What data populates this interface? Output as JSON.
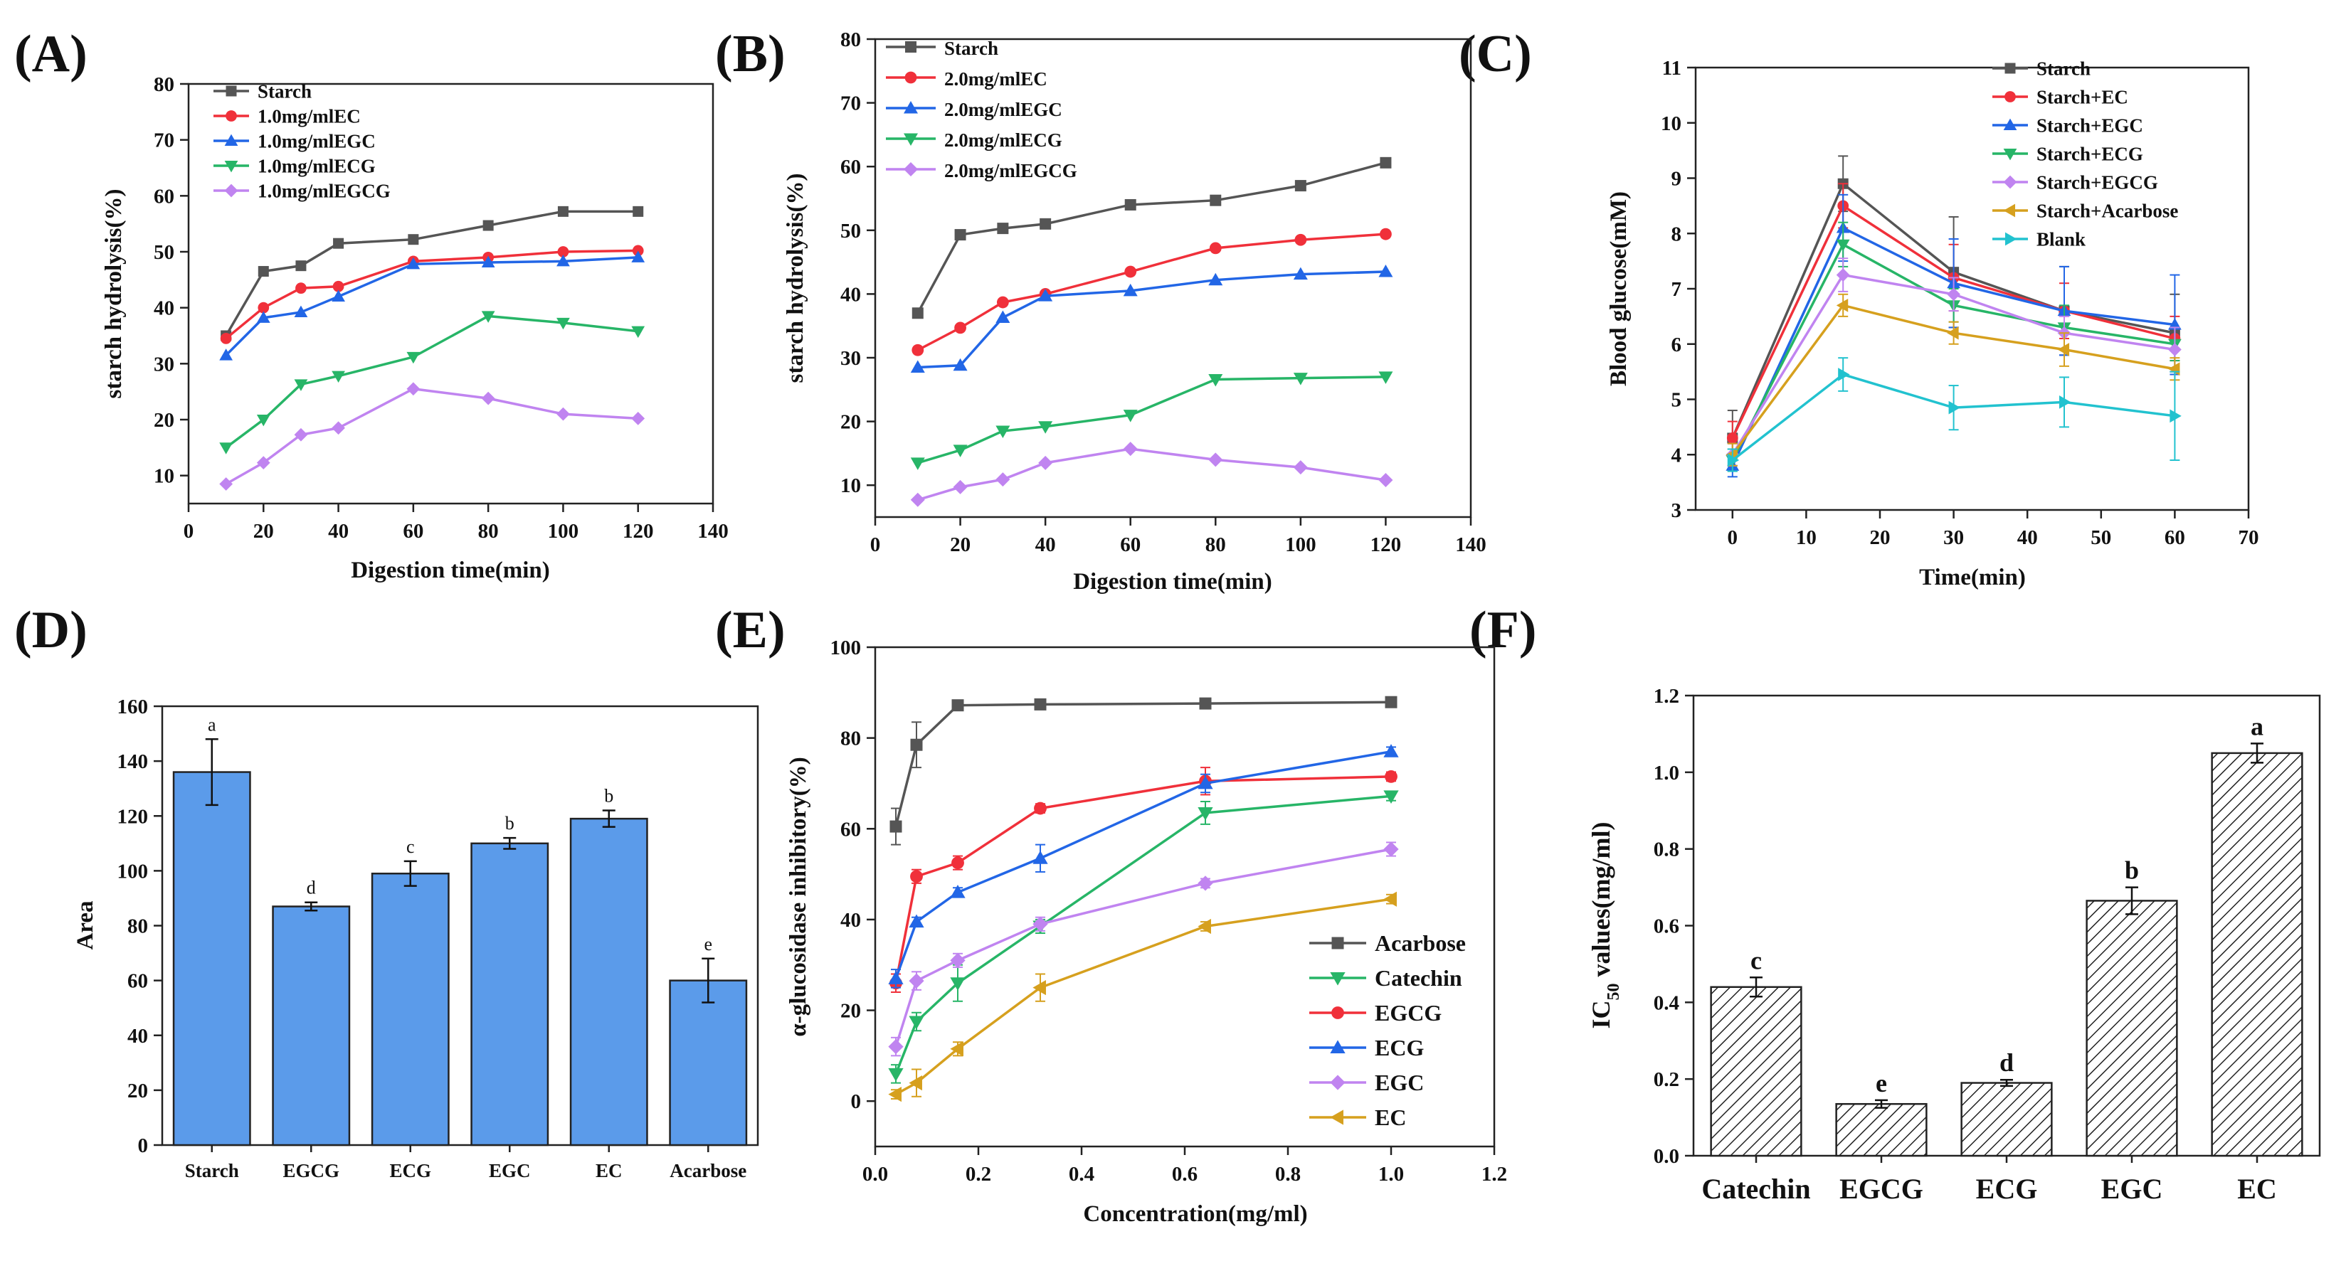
{
  "chart_data": [
    {
      "panel": "(A)",
      "type": "line",
      "xlabel": "Digestion time(min)",
      "ylabel": "starch hydrolysis(%)",
      "xlim": [
        0,
        140
      ],
      "ylim": [
        5,
        80
      ],
      "xticks": [
        0,
        20,
        40,
        60,
        80,
        100,
        120,
        140
      ],
      "yticks": [
        10,
        20,
        30,
        40,
        50,
        60,
        70,
        80
      ],
      "legend": "top-left",
      "x": [
        10,
        20,
        30,
        40,
        60,
        80,
        100,
        120
      ],
      "series": [
        {
          "name": "Starch",
          "color": "#555555",
          "marker": "square",
          "values": [
            35.0,
            46.5,
            47.5,
            51.5,
            52.2,
            54.7,
            57.2,
            57.2
          ]
        },
        {
          "name": "1.0mg/mlEC",
          "color": "#f0303a",
          "marker": "circle",
          "values": [
            34.5,
            40.0,
            43.5,
            43.8,
            48.3,
            49.0,
            50.0,
            50.2
          ]
        },
        {
          "name": "1.0mg/mlEGC",
          "color": "#2266e6",
          "marker": "triangle-up",
          "values": [
            31.5,
            38.2,
            39.2,
            42.0,
            47.8,
            48.1,
            48.3,
            49.0
          ]
        },
        {
          "name": "1.0mg/mlECG",
          "color": "#27b567",
          "marker": "triangle-down",
          "values": [
            15.0,
            20.0,
            26.3,
            27.8,
            31.2,
            38.5,
            37.3,
            35.8
          ]
        },
        {
          "name": "1.0mg/mlEGCG",
          "color": "#c084f0",
          "marker": "diamond",
          "values": [
            8.5,
            12.3,
            17.3,
            18.5,
            25.5,
            23.8,
            21.0,
            20.2
          ]
        }
      ]
    },
    {
      "panel": "(B)",
      "type": "line",
      "xlabel": "Digestion time(min)",
      "ylabel": "starch hydrolysis(%)",
      "xlim": [
        0,
        140
      ],
      "ylim": [
        5,
        80
      ],
      "xticks": [
        0,
        20,
        40,
        60,
        80,
        100,
        120,
        140
      ],
      "yticks": [
        10,
        20,
        30,
        40,
        50,
        60,
        70,
        80
      ],
      "legend": "top-left",
      "x": [
        10,
        20,
        30,
        40,
        60,
        80,
        100,
        120
      ],
      "series": [
        {
          "name": "Starch",
          "color": "#555555",
          "marker": "square",
          "values": [
            37.0,
            49.3,
            50.3,
            51.0,
            54.0,
            54.7,
            57.0,
            60.6
          ]
        },
        {
          "name": "2.0mg/mlEC",
          "color": "#f0303a",
          "marker": "circle",
          "values": [
            31.2,
            34.7,
            38.7,
            40.0,
            43.5,
            47.2,
            48.5,
            49.4
          ]
        },
        {
          "name": "2.0mg/mlEGC",
          "color": "#2266e6",
          "marker": "triangle-up",
          "values": [
            28.5,
            28.8,
            36.3,
            39.7,
            40.5,
            42.2,
            43.1,
            43.5
          ]
        },
        {
          "name": "2.0mg/mlECG",
          "color": "#27b567",
          "marker": "triangle-down",
          "values": [
            13.5,
            15.5,
            18.5,
            19.2,
            21.0,
            26.6,
            26.8,
            27.0
          ]
        },
        {
          "name": "2.0mg/mlEGCG",
          "color": "#c084f0",
          "marker": "diamond",
          "values": [
            7.7,
            9.7,
            10.9,
            13.5,
            15.7,
            14.0,
            12.8,
            10.8
          ]
        }
      ]
    },
    {
      "panel": "(C)",
      "type": "line",
      "xlabel": "Time(min)",
      "ylabel": "Blood glucose(mM)",
      "xlim": [
        -5,
        70
      ],
      "ylim": [
        3,
        11
      ],
      "xticks": [
        0,
        10,
        20,
        30,
        40,
        50,
        60,
        70
      ],
      "yticks": [
        3,
        4,
        5,
        6,
        7,
        8,
        9,
        10,
        11
      ],
      "legend": "top-right",
      "x": [
        0,
        15,
        30,
        45,
        60
      ],
      "series": [
        {
          "name": "Starch",
          "color": "#555555",
          "marker": "square",
          "values": [
            4.3,
            8.9,
            7.3,
            6.6,
            6.2
          ],
          "error": [
            0.5,
            0.5,
            1.0,
            0.8,
            0.7
          ]
        },
        {
          "name": "Starch+EC",
          "color": "#f0303a",
          "marker": "circle",
          "values": [
            4.3,
            8.5,
            7.2,
            6.6,
            6.1
          ],
          "error": [
            0.3,
            0.4,
            0.6,
            0.5,
            0.4
          ]
        },
        {
          "name": "Starch+EGC",
          "color": "#2266e6",
          "marker": "triangle-up",
          "values": [
            3.8,
            8.1,
            7.1,
            6.6,
            6.35
          ],
          "error": [
            0.2,
            0.6,
            0.8,
            0.8,
            0.9
          ]
        },
        {
          "name": "Starch+ECG",
          "color": "#27b567",
          "marker": "triangle-down",
          "values": [
            3.9,
            7.8,
            6.7,
            6.3,
            6.0
          ],
          "error": [
            0.2,
            0.4,
            0.3,
            0.4,
            0.3
          ]
        },
        {
          "name": "Starch+EGCG",
          "color": "#c084f0",
          "marker": "diamond",
          "values": [
            4.0,
            7.25,
            6.9,
            6.2,
            5.9
          ],
          "error": [
            0.2,
            0.3,
            0.3,
            0.3,
            0.4
          ]
        },
        {
          "name": "Starch+Acarbose",
          "color": "#d6a01e",
          "marker": "triangle-left",
          "values": [
            4.0,
            6.7,
            6.2,
            5.9,
            5.55
          ],
          "error": [
            0.2,
            0.2,
            0.2,
            0.3,
            0.2
          ]
        },
        {
          "name": "Blank",
          "color": "#22c2cf",
          "marker": "triangle-right",
          "values": [
            3.9,
            5.45,
            4.85,
            4.95,
            4.7
          ],
          "error": [
            0.2,
            0.3,
            0.4,
            0.45,
            0.8
          ]
        }
      ]
    },
    {
      "panel": "(D)",
      "type": "bar",
      "ylabel": "Area",
      "ylim": [
        0,
        160
      ],
      "yticks": [
        0,
        20,
        40,
        60,
        80,
        100,
        120,
        140,
        160
      ],
      "color": "#5b9bea",
      "categories": [
        "Starch",
        "EGCG",
        "ECG",
        "EGC",
        "EC",
        "Acarbose"
      ],
      "values": [
        136,
        87,
        99,
        110,
        119,
        60
      ],
      "errors": [
        12,
        1.5,
        4.5,
        2,
        3,
        8
      ],
      "letters": [
        "a",
        "d",
        "c",
        "b",
        "b",
        "e"
      ]
    },
    {
      "panel": "(E)",
      "type": "line",
      "xlabel": "Concentration(mg/ml)",
      "ylabel": "α-glucosidase inhibitory(%)",
      "xlim": [
        0,
        1.2
      ],
      "ylim": [
        -10,
        100
      ],
      "xticks": [
        0.0,
        0.2,
        0.4,
        0.6,
        0.8,
        1.0,
        1.2
      ],
      "yticks": [
        0,
        20,
        40,
        60,
        80,
        100
      ],
      "legend": "bottom-right",
      "x": [
        0.04,
        0.08,
        0.16,
        0.32,
        0.64,
        1.0
      ],
      "series": [
        {
          "name": "Acarbose",
          "color": "#555555",
          "marker": "square",
          "values": [
            60.5,
            78.5,
            87.2,
            87.4,
            87.6,
            87.9
          ],
          "error": [
            4,
            5,
            0.8,
            0.8,
            0.5,
            0.5
          ]
        },
        {
          "name": "Catechin",
          "color": "#27b567",
          "marker": "triangle-down",
          "values": [
            6.0,
            17.5,
            26.0,
            38.5,
            63.5,
            67.2
          ],
          "error": [
            2,
            2,
            4,
            1.5,
            2.5,
            1
          ]
        },
        {
          "name": "EGCG",
          "color": "#f0303a",
          "marker": "circle",
          "values": [
            26.0,
            49.5,
            52.5,
            64.5,
            70.5,
            71.5
          ],
          "error": [
            2,
            1.5,
            1.5,
            1,
            3,
            1
          ]
        },
        {
          "name": "ECG",
          "color": "#2266e6",
          "marker": "triangle-up",
          "values": [
            27.0,
            39.5,
            46.0,
            53.5,
            70.0,
            77.0
          ],
          "error": [
            2,
            1,
            1,
            3,
            2,
            1
          ]
        },
        {
          "name": "EGC",
          "color": "#c084f0",
          "marker": "diamond",
          "values": [
            12.0,
            26.5,
            31.0,
            39.0,
            48.0,
            55.5
          ],
          "error": [
            2,
            2,
            1.5,
            1.5,
            1,
            1.5
          ]
        },
        {
          "name": "EC",
          "color": "#d6a01e",
          "marker": "triangle-left",
          "values": [
            1.5,
            4.0,
            11.5,
            25.0,
            38.5,
            44.5
          ],
          "error": [
            1,
            3,
            1.5,
            3,
            1,
            1
          ]
        }
      ]
    },
    {
      "panel": "(F)",
      "type": "bar",
      "ylabel": "IC50 values(mg/ml)",
      "ylim": [
        0,
        1.2
      ],
      "yticks": [
        0.0,
        0.2,
        0.4,
        0.6,
        0.8,
        1.0,
        1.2
      ],
      "pattern": "hatched",
      "categories": [
        "Catechin",
        "EGCG",
        "ECG",
        "EGC",
        "EC"
      ],
      "values": [
        0.44,
        0.135,
        0.19,
        0.665,
        1.05
      ],
      "errors": [
        0.025,
        0.01,
        0.008,
        0.035,
        0.025
      ],
      "letters": [
        "c",
        "e",
        "d",
        "b",
        "a"
      ]
    }
  ]
}
